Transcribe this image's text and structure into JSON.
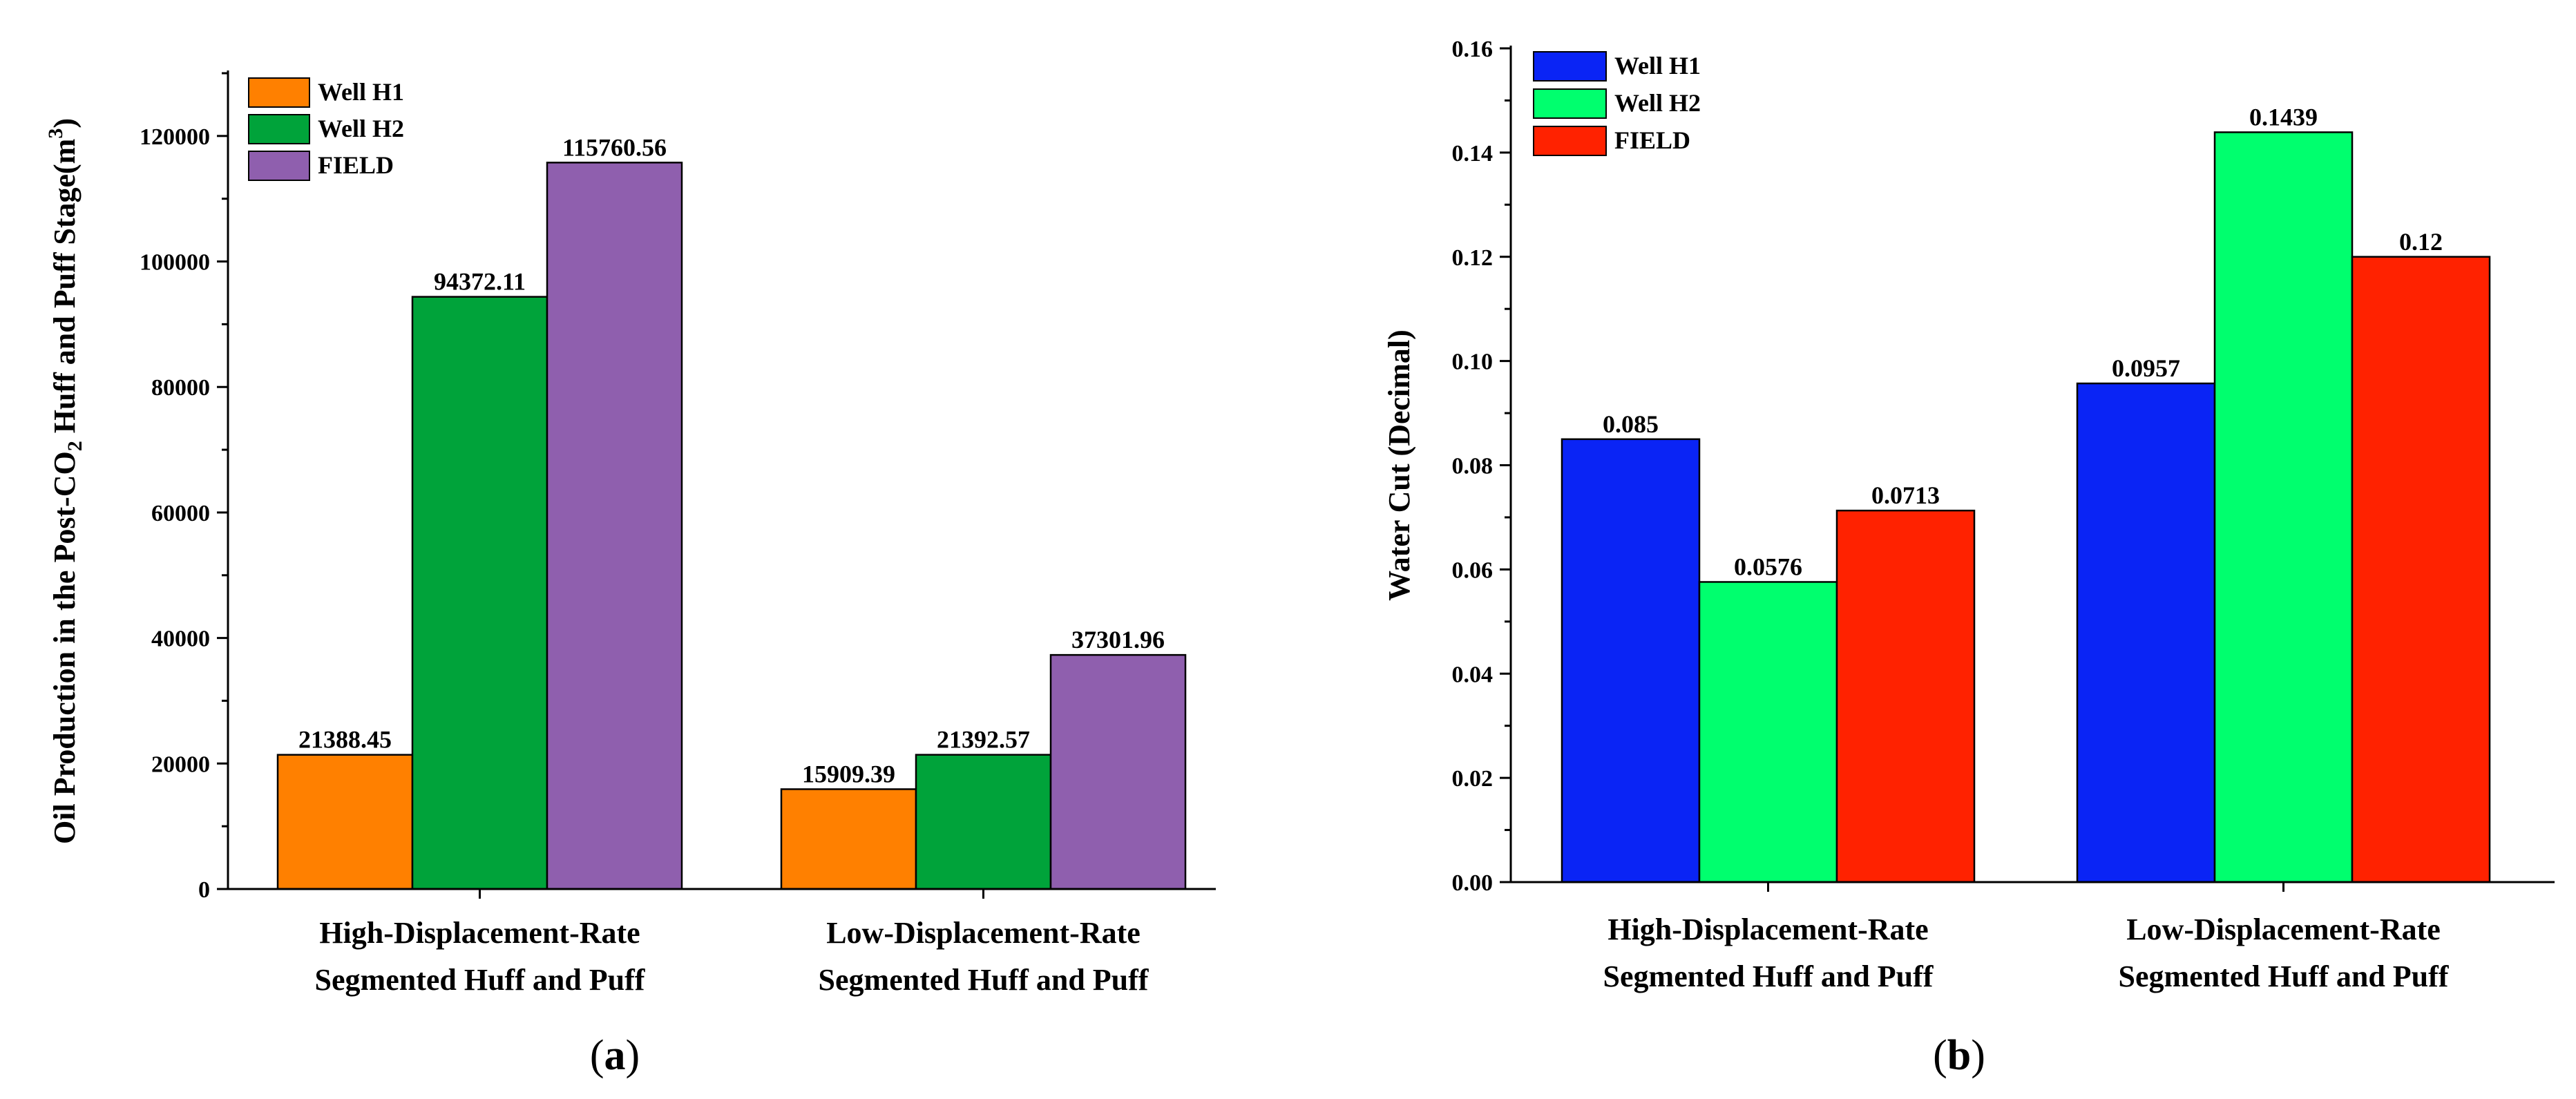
{
  "chart_data": [
    {
      "type": "bar",
      "panel_label": "(a)",
      "panel_letter": "a",
      "ylabel_parts": [
        "Oil Production in the Post-CO",
        "2",
        " Huff and Puff Stage(m",
        "3",
        ")"
      ],
      "categories": [
        [
          "High-Displacement-Rate",
          "Segmented Huff and Puff"
        ],
        [
          "Low-Displacement-Rate",
          "Segmented Huff and Puff"
        ]
      ],
      "series": [
        {
          "name": "Well H1",
          "color": "#ff8000",
          "values": [
            21388.45,
            15909.39
          ],
          "labels": [
            "21388.45",
            "15909.39"
          ]
        },
        {
          "name": "Well H2",
          "color": "#00a33a",
          "values": [
            94372.11,
            21392.57
          ],
          "labels": [
            "94372.11",
            "21392.57"
          ]
        },
        {
          "name": "FIELD",
          "color": "#8f5fae",
          "values": [
            115760.56,
            37301.96
          ],
          "labels": [
            "115760.56",
            "37301.96"
          ]
        }
      ],
      "ylim": [
        0,
        130000
      ],
      "yticks": [
        0,
        20000,
        40000,
        60000,
        80000,
        100000,
        120000
      ],
      "ytick_labels": [
        "0",
        "20000",
        "40000",
        "60000",
        "80000",
        "100000",
        "120000"
      ],
      "legend": "top-left"
    },
    {
      "type": "bar",
      "panel_label": "(b)",
      "panel_letter": "b",
      "ylabel_parts": [
        "Water Cut (Decimal)"
      ],
      "categories": [
        [
          "High-Displacement-Rate",
          "Segmented Huff and Puff"
        ],
        [
          "Low-Displacement-Rate",
          "Segmented Huff and Puff"
        ]
      ],
      "series": [
        {
          "name": "Well H1",
          "color": "#0a24f5",
          "values": [
            0.085,
            0.0957
          ],
          "labels": [
            "0.085",
            "0.0957"
          ]
        },
        {
          "name": "Well H2",
          "color": "#00ff6e",
          "values": [
            0.0576,
            0.1439
          ],
          "labels": [
            "0.0576",
            "0.1439"
          ]
        },
        {
          "name": "FIELD",
          "color": "#ff2200",
          "values": [
            0.0713,
            0.12
          ],
          "labels": [
            "0.0713",
            "0.12"
          ]
        }
      ],
      "ylim": [
        0,
        0.16
      ],
      "yticks": [
        0,
        0.02,
        0.04,
        0.06,
        0.08,
        0.1,
        0.12,
        0.14,
        0.16
      ],
      "ytick_labels": [
        "0.00",
        "0.02",
        "0.04",
        "0.06",
        "0.08",
        "0.10",
        "0.12",
        "0.14",
        "0.16"
      ],
      "legend": "top-left"
    }
  ]
}
